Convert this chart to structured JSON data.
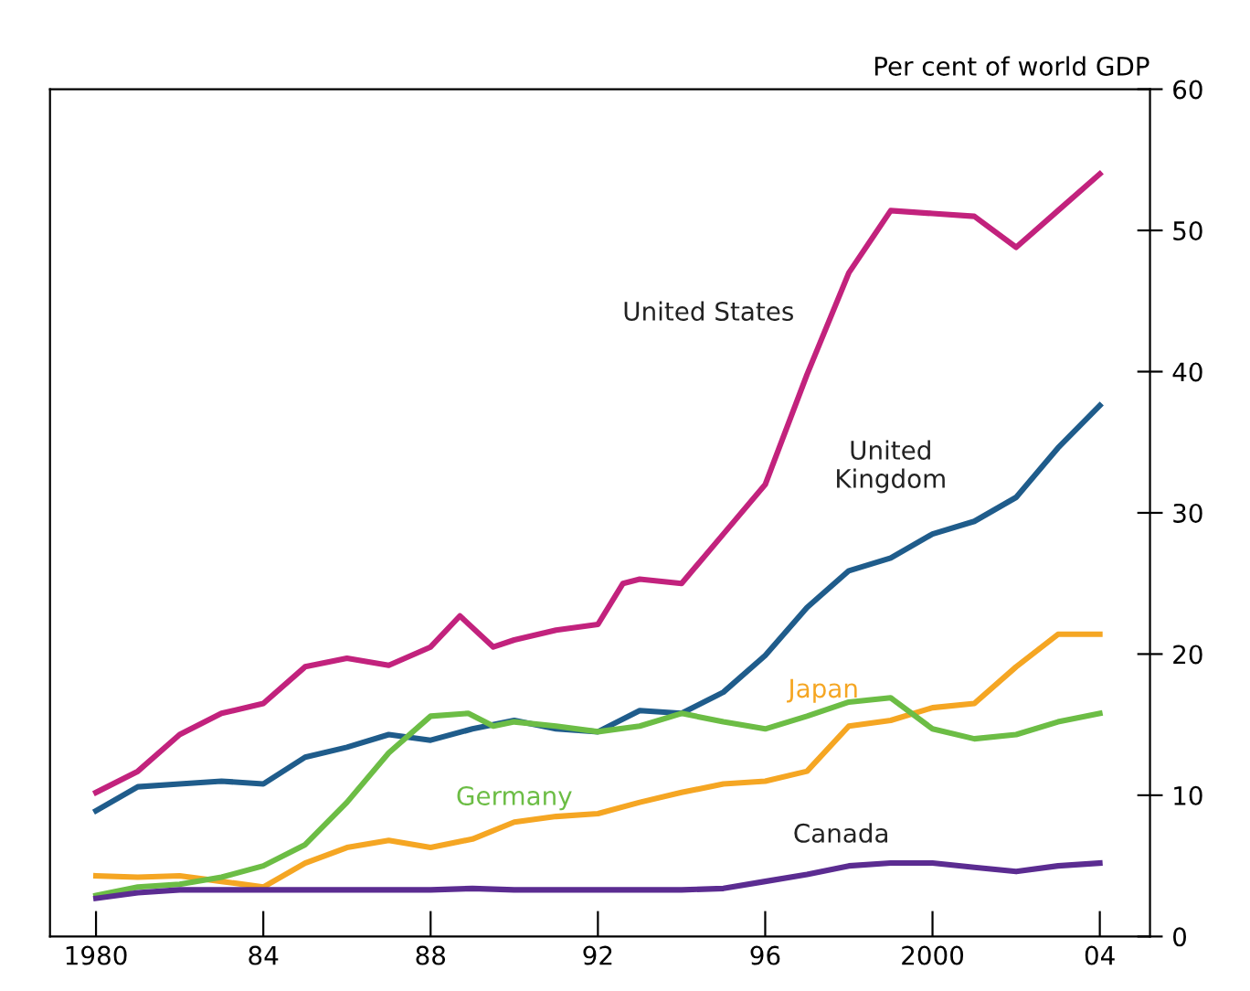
{
  "chart_data": {
    "type": "line",
    "ylabel": "Per cent of world GDP",
    "x": [
      1980,
      1981,
      1982,
      1983,
      1984,
      1985,
      1986,
      1987,
      1988,
      1989,
      1990,
      1991,
      1992,
      1993,
      1994,
      1995,
      1996,
      1997,
      1998,
      1999,
      2000,
      2001,
      2002,
      2003,
      2004
    ],
    "series": [
      {
        "name": "United States",
        "color": "#c2227d",
        "x": [
          1980,
          1981,
          1982,
          1983,
          1984,
          1985,
          1986,
          1987,
          1988,
          1988.7,
          1989.5,
          1990,
          1991,
          1992,
          1992.6,
          1993,
          1994,
          1995,
          1996,
          1997,
          1998,
          1999,
          2000,
          2001,
          2002,
          2003,
          2004
        ],
        "values": [
          10.2,
          11.7,
          14.3,
          15.8,
          16.5,
          19.1,
          19.7,
          19.2,
          20.5,
          22.7,
          20.5,
          21.0,
          21.7,
          22.1,
          25.0,
          25.3,
          25.0,
          28.5,
          32.0,
          39.8,
          47.0,
          51.4,
          51.2,
          51.0,
          48.8,
          51.4,
          54.0
        ]
      },
      {
        "name": "United\nKingdom",
        "color": "#1f5c8b",
        "values": [
          8.9,
          10.6,
          10.8,
          11.0,
          10.8,
          12.7,
          13.4,
          14.3,
          13.9,
          14.7,
          15.3,
          14.7,
          14.5,
          16.0,
          15.8,
          17.3,
          19.9,
          23.3,
          25.9,
          26.8,
          28.5,
          29.4,
          31.1,
          34.6,
          37.6
        ]
      },
      {
        "name": "Japan",
        "color": "#f5a623",
        "values": [
          4.3,
          4.2,
          4.3,
          3.9,
          3.5,
          5.2,
          6.3,
          6.8,
          6.3,
          6.9,
          8.1,
          8.5,
          8.7,
          9.5,
          10.2,
          10.8,
          11.0,
          11.7,
          14.9,
          15.3,
          16.2,
          16.5,
          19.1,
          21.4,
          21.4
        ]
      },
      {
        "name": "Germany",
        "color": "#6cbd45",
        "x": [
          1980,
          1981,
          1982,
          1983,
          1984,
          1985,
          1986,
          1987,
          1988,
          1988.9,
          1989.5,
          1990,
          1991,
          1992,
          1993,
          1994,
          1995,
          1996,
          1997,
          1998,
          1999,
          2000,
          2001,
          2002,
          2003,
          2004
        ],
        "values": [
          2.9,
          3.5,
          3.7,
          4.2,
          5.0,
          6.5,
          9.5,
          13.0,
          15.6,
          15.8,
          14.9,
          15.2,
          14.9,
          14.5,
          14.9,
          15.8,
          15.2,
          14.7,
          15.6,
          16.6,
          16.9,
          14.7,
          14.0,
          14.3,
          15.2,
          15.8
        ]
      },
      {
        "name": "Canada",
        "color": "#5b2c91",
        "values": [
          2.7,
          3.1,
          3.3,
          3.3,
          3.3,
          3.3,
          3.3,
          3.3,
          3.3,
          3.4,
          3.3,
          3.3,
          3.3,
          3.3,
          3.3,
          3.4,
          3.9,
          4.4,
          5.0,
          5.2,
          5.2,
          4.9,
          4.6,
          5.0,
          5.2
        ]
      }
    ],
    "xlim": [
      1978.9,
      2005.2
    ],
    "ylim": [
      0,
      60
    ],
    "xticks": [
      {
        "value": 1980,
        "label": "1980"
      },
      {
        "value": 1984,
        "label": "84"
      },
      {
        "value": 1988,
        "label": "88"
      },
      {
        "value": 1992,
        "label": "92"
      },
      {
        "value": 1996,
        "label": "96"
      },
      {
        "value": 2000,
        "label": "2000"
      },
      {
        "value": 2004,
        "label": "04"
      }
    ],
    "yticks": [
      0,
      10,
      20,
      30,
      40,
      50,
      60
    ],
    "grid": false,
    "legend": false,
    "marker": "none",
    "line_style": "solid"
  }
}
